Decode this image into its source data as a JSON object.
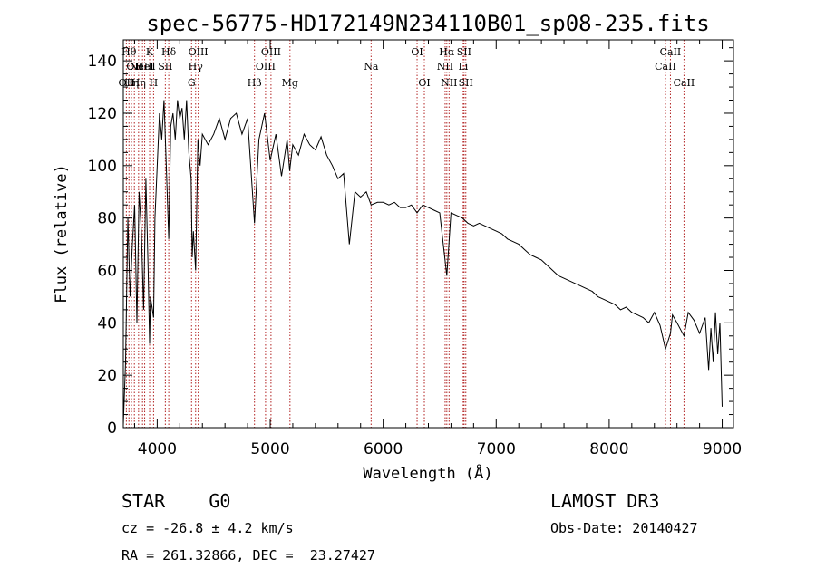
{
  "chart_data": {
    "type": "line",
    "title": "spec-56775-HD172149N234110B01_sp08-235.fits",
    "xlabel": "Wavelength (Å)",
    "ylabel": "Flux (relative)",
    "xlim": [
      3700,
      9100
    ],
    "ylim": [
      0,
      148
    ],
    "x_ticks": [
      4000,
      5000,
      6000,
      7000,
      8000,
      9000
    ],
    "y_ticks": [
      0,
      20,
      40,
      60,
      80,
      100,
      120,
      140
    ],
    "series": [
      {
        "name": "flux",
        "x": [
          3700,
          3720,
          3740,
          3760,
          3780,
          3800,
          3820,
          3840,
          3860,
          3880,
          3900,
          3920,
          3933,
          3940,
          3968,
          3980,
          4000,
          4020,
          4040,
          4060,
          4080,
          4102,
          4120,
          4140,
          4160,
          4180,
          4200,
          4220,
          4240,
          4260,
          4280,
          4300,
          4310,
          4320,
          4340,
          4360,
          4380,
          4400,
          4450,
          4500,
          4550,
          4600,
          4650,
          4700,
          4750,
          4800,
          4861,
          4900,
          4950,
          5000,
          5050,
          5100,
          5150,
          5172,
          5200,
          5250,
          5300,
          5350,
          5400,
          5450,
          5500,
          5550,
          5600,
          5650,
          5700,
          5750,
          5800,
          5850,
          5893,
          5950,
          6000,
          6050,
          6100,
          6150,
          6200,
          6250,
          6300,
          6350,
          6400,
          6450,
          6500,
          6563,
          6600,
          6650,
          6700,
          6750,
          6800,
          6850,
          6900,
          6950,
          7000,
          7050,
          7100,
          7150,
          7200,
          7250,
          7300,
          7350,
          7400,
          7450,
          7500,
          7550,
          7600,
          7650,
          7700,
          7750,
          7800,
          7850,
          7900,
          7950,
          8000,
          8050,
          8100,
          8150,
          8200,
          8250,
          8300,
          8350,
          8400,
          8450,
          8498,
          8542,
          8560,
          8600,
          8662,
          8700,
          8750,
          8800,
          8850,
          8880,
          8900,
          8920,
          8940,
          8960,
          8980,
          9000
        ],
        "y": [
          1,
          25,
          80,
          50,
          70,
          85,
          40,
          90,
          75,
          45,
          95,
          60,
          32,
          50,
          42,
          80,
          100,
          120,
          110,
          125,
          100,
          72,
          115,
          120,
          110,
          125,
          118,
          122,
          110,
          125,
          105,
          95,
          65,
          75,
          60,
          110,
          100,
          112,
          108,
          112,
          118,
          110,
          118,
          120,
          112,
          118,
          78,
          110,
          120,
          102,
          112,
          96,
          110,
          98,
          108,
          104,
          112,
          108,
          106,
          111,
          104,
          100,
          95,
          97,
          70,
          90,
          88,
          90,
          85,
          86,
          86,
          85,
          86,
          84,
          84,
          85,
          82,
          85,
          84,
          83,
          82,
          58,
          82,
          81,
          80,
          78,
          77,
          78,
          77,
          76,
          75,
          74,
          72,
          71,
          70,
          68,
          66,
          65,
          64,
          62,
          60,
          58,
          57,
          56,
          55,
          54,
          53,
          52,
          50,
          49,
          48,
          47,
          45,
          46,
          44,
          43,
          42,
          40,
          44,
          39,
          30,
          36,
          43,
          40,
          35,
          44,
          41,
          36,
          42,
          22,
          38,
          25,
          44,
          28,
          40,
          8
        ]
      }
    ],
    "lines": [
      {
        "wave": 3727,
        "label": "OII",
        "row": 3
      },
      {
        "wave": 3750,
        "label": "Hθ",
        "row": 1
      },
      {
        "wave": 3772,
        "label": "Hη",
        "row": 3
      },
      {
        "wave": 3798,
        "label": "OII",
        "row": 2
      },
      {
        "wave": 3835,
        "label": "Hη",
        "row": 3
      },
      {
        "wave": 3870,
        "label": "NeIII",
        "row": 2
      },
      {
        "wave": 3889,
        "label": "HeI",
        "row": 2
      },
      {
        "wave": 3933,
        "label": "K",
        "row": 1
      },
      {
        "wave": 3968,
        "label": "H",
        "row": 3
      },
      {
        "wave": 4072,
        "label": "SII",
        "row": 2
      },
      {
        "wave": 4102,
        "label": "Hδ",
        "row": 1
      },
      {
        "wave": 4304,
        "label": "G",
        "row": 3
      },
      {
        "wave": 4340,
        "label": "Hγ",
        "row": 2
      },
      {
        "wave": 4363,
        "label": "OIII",
        "row": 1
      },
      {
        "wave": 4861,
        "label": "Hβ",
        "row": 3
      },
      {
        "wave": 4959,
        "label": "OIII",
        "row": 2
      },
      {
        "wave": 5007,
        "label": "OIII",
        "row": 1
      },
      {
        "wave": 5175,
        "label": "Mg",
        "row": 3
      },
      {
        "wave": 5893,
        "label": "Na",
        "row": 2
      },
      {
        "wave": 6300,
        "label": "OI",
        "row": 1
      },
      {
        "wave": 6364,
        "label": "OI",
        "row": 3
      },
      {
        "wave": 6548,
        "label": "NII",
        "row": 2
      },
      {
        "wave": 6563,
        "label": "Hα",
        "row": 1
      },
      {
        "wave": 6583,
        "label": "NII",
        "row": 3
      },
      {
        "wave": 6708,
        "label": "Li",
        "row": 2
      },
      {
        "wave": 6716,
        "label": "SII",
        "row": 1
      },
      {
        "wave": 6731,
        "label": "SII",
        "row": 3
      },
      {
        "wave": 8498,
        "label": "CaII",
        "row": 2
      },
      {
        "wave": 8542,
        "label": "CaII",
        "row": 1
      },
      {
        "wave": 8662,
        "label": "CaII",
        "row": 3
      }
    ]
  },
  "info": {
    "class_line": "STAR    G0",
    "cz_line": "cz = -26.8 ± 4.2 km/s",
    "coord_line": "RA = 261.32866, DEC =  23.27427",
    "survey": "LAMOST DR3",
    "obs_date": "Obs-Date: 20140427"
  },
  "colors": {
    "spectrum": "#000000",
    "line_marker": "#b22222",
    "axis": "#000000"
  }
}
